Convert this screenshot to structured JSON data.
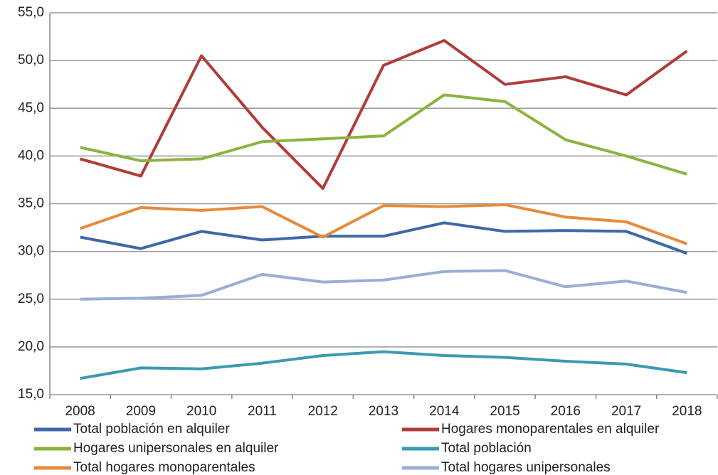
{
  "chart_data": {
    "type": "line",
    "categories": [
      "2008",
      "2009",
      "2010",
      "2011",
      "2012",
      "2013",
      "2014",
      "2015",
      "2016",
      "2017",
      "2018"
    ],
    "series": [
      {
        "name": "Total población en alquiler",
        "color": "#3f68a6",
        "values": [
          31.5,
          30.3,
          32.1,
          31.2,
          31.6,
          31.6,
          33.0,
          32.1,
          32.2,
          32.1,
          29.8
        ]
      },
      {
        "name": "Hogares monoparentales en alquiler",
        "color": "#b03c3a",
        "values": [
          39.7,
          37.9,
          50.5,
          43.0,
          36.6,
          49.5,
          52.1,
          47.5,
          48.3,
          46.4,
          51.0
        ]
      },
      {
        "name": "Hogares unipersonales en alquiler",
        "color": "#8cb33f",
        "values": [
          40.9,
          39.5,
          39.7,
          41.5,
          41.8,
          42.1,
          46.4,
          45.7,
          41.7,
          40.0,
          38.1
        ]
      },
      {
        "name": "Total población",
        "color": "#3b9ab0",
        "values": [
          16.7,
          17.8,
          17.7,
          18.3,
          19.1,
          19.5,
          19.1,
          18.9,
          18.5,
          18.2,
          17.3
        ]
      },
      {
        "name": "Total hogares monoparentales",
        "color": "#e68a3b",
        "values": [
          32.4,
          34.6,
          34.3,
          34.7,
          31.5,
          34.8,
          34.7,
          34.9,
          33.6,
          33.1,
          30.8
        ]
      },
      {
        "name": "Total hogares unipersonales",
        "color": "#98afd6",
        "values": [
          25.0,
          25.1,
          25.4,
          27.6,
          26.8,
          27.0,
          27.9,
          28.0,
          26.3,
          26.9,
          25.7
        ]
      }
    ],
    "ylim": [
      15,
      55
    ],
    "yticks": [
      {
        "value": 15,
        "label": "15,0"
      },
      {
        "value": 20,
        "label": "20,0"
      },
      {
        "value": 25,
        "label": "25,0"
      },
      {
        "value": 30,
        "label": "30,0"
      },
      {
        "value": 35,
        "label": "35,0"
      },
      {
        "value": 40,
        "label": "40,0"
      },
      {
        "value": 45,
        "label": "45,0"
      },
      {
        "value": 50,
        "label": "50,0"
      },
      {
        "value": 55,
        "label": "55,0"
      }
    ],
    "grid": true,
    "legend": "bottom"
  }
}
